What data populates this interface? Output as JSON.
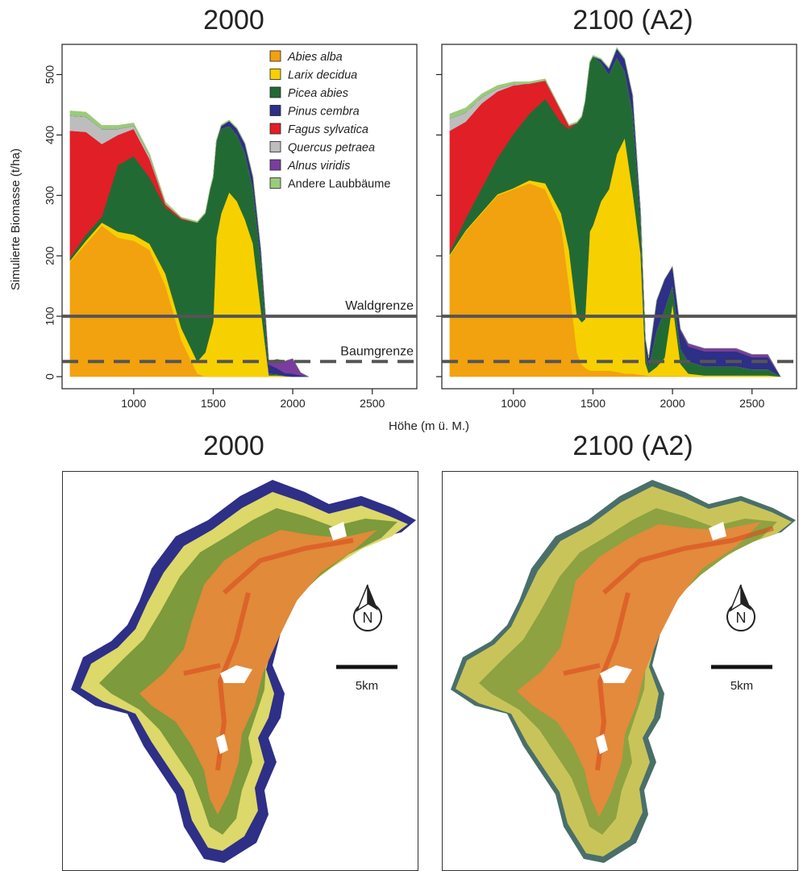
{
  "titles": {
    "top_left": "2000",
    "top_right": "2100 (A2)",
    "bottom_left": "2000",
    "bottom_right": "2100 (A2)"
  },
  "shared": {
    "ylabel": "Simulierte Biomasse (t/ha)",
    "xlabel": "Höhe (m ü. M.)",
    "waldgrenze_label": "Waldgrenze",
    "baumgrenze_label": "Baumgrenze",
    "north_label": "N",
    "scale_label": "5km"
  },
  "colors": {
    "Abies alba": "#f2a10f",
    "Larix decidua": "#f7d000",
    "Picea abies": "#226a34",
    "Pinus cembra": "#2e2f86",
    "Fagus sylvatica": "#e11f26",
    "Quercus petraea": "#bdbdbd",
    "Alnus viridis": "#7a3d9e",
    "Andere Laubbäume": "#9acb7a"
  },
  "chart_data": [
    {
      "type": "area",
      "stacked": true,
      "title": "2000",
      "xlabel": "Höhe (m ü. M.)",
      "ylabel": "Simulierte Biomasse (t/ha)",
      "xlim": [
        550,
        2780
      ],
      "ylim": [
        -20,
        550
      ],
      "xticks": [
        1000,
        1500,
        2000,
        2500
      ],
      "yticks": [
        0,
        100,
        200,
        300,
        400,
        500
      ],
      "hlines": [
        {
          "label": "Waldgrenze",
          "y": 100,
          "style": "solid"
        },
        {
          "label": "Baumgrenze",
          "y": 25,
          "style": "dashed"
        }
      ],
      "legend": {
        "position": "top-right",
        "entries": [
          "Abies alba",
          "Larix decidua",
          "Picea abies",
          "Pinus cembra",
          "Fagus sylvatica",
          "Quercus petraea",
          "Alnus viridis",
          "Andere Laubbäume"
        ]
      },
      "x": [
        600,
        700,
        800,
        900,
        1000,
        1100,
        1200,
        1300,
        1400,
        1450,
        1480,
        1500,
        1520,
        1550,
        1600,
        1650,
        1700,
        1750,
        1800,
        1850,
        1900,
        1950,
        2000,
        2050,
        2100
      ],
      "series": [
        {
          "name": "Abies alba",
          "values": [
            190,
            220,
            250,
            230,
            225,
            210,
            150,
            60,
            5,
            0,
            0,
            0,
            0,
            0,
            0,
            0,
            0,
            0,
            0,
            0,
            0,
            0,
            0,
            0,
            0
          ]
        },
        {
          "name": "Larix decidua",
          "values": [
            2,
            5,
            5,
            10,
            10,
            10,
            20,
            20,
            20,
            40,
            70,
            90,
            230,
            270,
            305,
            290,
            260,
            220,
            110,
            2,
            2,
            1,
            0,
            0,
            0
          ]
        },
        {
          "name": "Picea abies",
          "values": [
            5,
            10,
            10,
            110,
            130,
            110,
            110,
            180,
            230,
            230,
            240,
            240,
            160,
            140,
            110,
            110,
            110,
            90,
            80,
            3,
            2,
            0,
            0,
            0,
            0
          ]
        },
        {
          "name": "Pinus cembra",
          "values": [
            0,
            0,
            0,
            0,
            0,
            0,
            0,
            0,
            0,
            0,
            0,
            0,
            0,
            5,
            8,
            10,
            15,
            20,
            20,
            15,
            10,
            5,
            5,
            2,
            0
          ]
        },
        {
          "name": "Fagus sylvatica",
          "values": [
            210,
            170,
            120,
            50,
            45,
            30,
            5,
            2,
            0,
            0,
            0,
            0,
            0,
            0,
            0,
            0,
            0,
            0,
            0,
            0,
            0,
            0,
            0,
            0,
            0
          ]
        },
        {
          "name": "Quercus petraea",
          "values": [
            25,
            25,
            25,
            10,
            5,
            5,
            0,
            0,
            0,
            0,
            0,
            0,
            0,
            0,
            0,
            0,
            0,
            0,
            0,
            0,
            0,
            0,
            0,
            0,
            0
          ]
        },
        {
          "name": "Alnus viridis",
          "values": [
            0,
            0,
            0,
            0,
            0,
            0,
            0,
            0,
            0,
            0,
            0,
            0,
            0,
            0,
            0,
            0,
            0,
            0,
            0,
            5,
            15,
            20,
            25,
            5,
            0
          ]
        },
        {
          "name": "Andere Laubbäume",
          "values": [
            8,
            8,
            6,
            6,
            5,
            4,
            4,
            2,
            2,
            2,
            2,
            2,
            2,
            2,
            2,
            2,
            2,
            2,
            2,
            0,
            0,
            0,
            0,
            0,
            0
          ]
        }
      ]
    },
    {
      "type": "area",
      "stacked": true,
      "title": "2100 (A2)",
      "xlabel": "Höhe (m ü. M.)",
      "ylabel": "Simulierte Biomasse (t/ha)",
      "xlim": [
        550,
        2780
      ],
      "ylim": [
        -20,
        550
      ],
      "xticks": [
        1000,
        1500,
        2000,
        2500
      ],
      "yticks": [
        0,
        100,
        200,
        300,
        400,
        500
      ],
      "hlines": [
        {
          "label": "Waldgrenze",
          "y": 100,
          "style": "solid"
        },
        {
          "label": "Baumgrenze",
          "y": 25,
          "style": "dashed"
        }
      ],
      "x": [
        600,
        700,
        800,
        900,
        1000,
        1100,
        1200,
        1300,
        1350,
        1400,
        1430,
        1450,
        1480,
        1500,
        1550,
        1600,
        1650,
        1700,
        1750,
        1800,
        1830,
        1850,
        1900,
        1950,
        2000,
        2050,
        2100,
        2200,
        2300,
        2400,
        2500,
        2600,
        2680
      ],
      "series": [
        {
          "name": "Abies alba",
          "values": [
            200,
            240,
            270,
            300,
            310,
            320,
            310,
            250,
            150,
            40,
            20,
            15,
            10,
            10,
            10,
            10,
            8,
            5,
            5,
            3,
            2,
            1,
            1,
            1,
            1,
            1,
            0,
            0,
            0,
            0,
            0,
            0,
            0
          ]
        },
        {
          "name": "Larix decidua",
          "values": [
            2,
            2,
            2,
            2,
            2,
            5,
            10,
            20,
            60,
            60,
            70,
            80,
            230,
            240,
            280,
            300,
            360,
            390,
            300,
            200,
            20,
            5,
            15,
            30,
            120,
            20,
            5,
            2,
            2,
            2,
            2,
            2,
            0
          ]
        },
        {
          "name": "Picea abies",
          "values": [
            5,
            20,
            40,
            60,
            90,
            110,
            140,
            150,
            200,
            320,
            340,
            360,
            280,
            280,
            230,
            190,
            160,
            110,
            130,
            50,
            20,
            10,
            60,
            80,
            30,
            25,
            20,
            15,
            15,
            15,
            10,
            10,
            0
          ]
        },
        {
          "name": "Pinus cembra",
          "values": [
            0,
            0,
            0,
            0,
            0,
            0,
            0,
            0,
            0,
            0,
            0,
            0,
            0,
            0,
            5,
            10,
            15,
            20,
            30,
            20,
            20,
            15,
            50,
            50,
            30,
            30,
            25,
            25,
            25,
            25,
            20,
            20,
            0
          ]
        },
        {
          "name": "Fagus sylvatica",
          "values": [
            200,
            160,
            140,
            110,
            80,
            50,
            30,
            20,
            5,
            0,
            0,
            0,
            0,
            0,
            0,
            0,
            0,
            0,
            0,
            0,
            0,
            0,
            0,
            0,
            0,
            0,
            0,
            0,
            0,
            0,
            0,
            0,
            0
          ]
        },
        {
          "name": "Quercus petraea",
          "values": [
            20,
            15,
            10,
            5,
            2,
            0,
            0,
            0,
            0,
            0,
            0,
            0,
            0,
            0,
            0,
            0,
            0,
            0,
            0,
            0,
            0,
            0,
            0,
            0,
            0,
            0,
            0,
            0,
            0,
            0,
            0,
            0,
            0
          ]
        },
        {
          "name": "Alnus viridis",
          "values": [
            0,
            0,
            0,
            0,
            0,
            0,
            0,
            0,
            0,
            0,
            0,
            0,
            0,
            0,
            0,
            0,
            0,
            0,
            0,
            0,
            0,
            0,
            0,
            0,
            2,
            3,
            5,
            5,
            5,
            5,
            5,
            5,
            0
          ]
        },
        {
          "name": "Andere Laubbäume",
          "values": [
            8,
            8,
            6,
            5,
            4,
            3,
            3,
            2,
            2,
            2,
            2,
            2,
            2,
            2,
            2,
            2,
            2,
            2,
            2,
            0,
            0,
            0,
            0,
            0,
            0,
            0,
            0,
            0,
            0,
            0,
            0,
            0,
            0
          ]
        }
      ]
    }
  ]
}
